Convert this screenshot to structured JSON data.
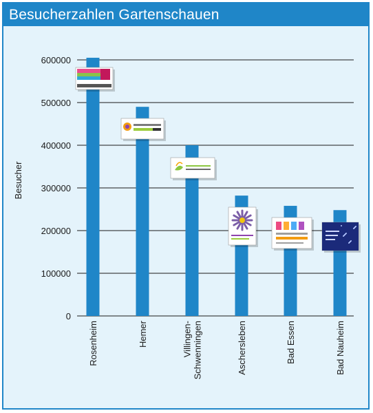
{
  "chart_data": {
    "type": "bar",
    "title": "Besucherzahlen Gartenschauen",
    "ylabel": "Besucher",
    "xlabel": "",
    "categories": [
      [
        "Rosenheim"
      ],
      [
        "Hemer"
      ],
      [
        "Villingen-",
        "Schwenningen"
      ],
      [
        "Aschersleben"
      ],
      [
        "Bad Essen"
      ],
      [
        "Bad Nauheim"
      ]
    ],
    "values": [
      605000,
      490000,
      400000,
      282000,
      258000,
      248000
    ],
    "ylim": [
      0,
      600000
    ],
    "yticks": [
      0,
      100000,
      200000,
      300000,
      400000,
      500000,
      600000
    ],
    "ytick_labels": [
      "0",
      "100000",
      "200000",
      "300000",
      "400000",
      "500000",
      "600000"
    ],
    "grid": true,
    "colors": {
      "bar": "#1f86c8",
      "title_bar": "#1f86c8",
      "background": "#e4f3fb",
      "grid": "#1a1a1a"
    },
    "logos": [
      {
        "category": "Rosenheim",
        "icon": "rosenheim-logo-icon"
      },
      {
        "category": "Hemer",
        "icon": "hemer-logo-icon"
      },
      {
        "category": "Villingen-Schwenningen",
        "icon": "villingen-logo-icon"
      },
      {
        "category": "Aschersleben",
        "icon": "aschersleben-logo-icon"
      },
      {
        "category": "Bad Essen",
        "icon": "bad-essen-logo-icon"
      },
      {
        "category": "Bad Nauheim",
        "icon": "bad-nauheim-logo-icon"
      }
    ]
  }
}
